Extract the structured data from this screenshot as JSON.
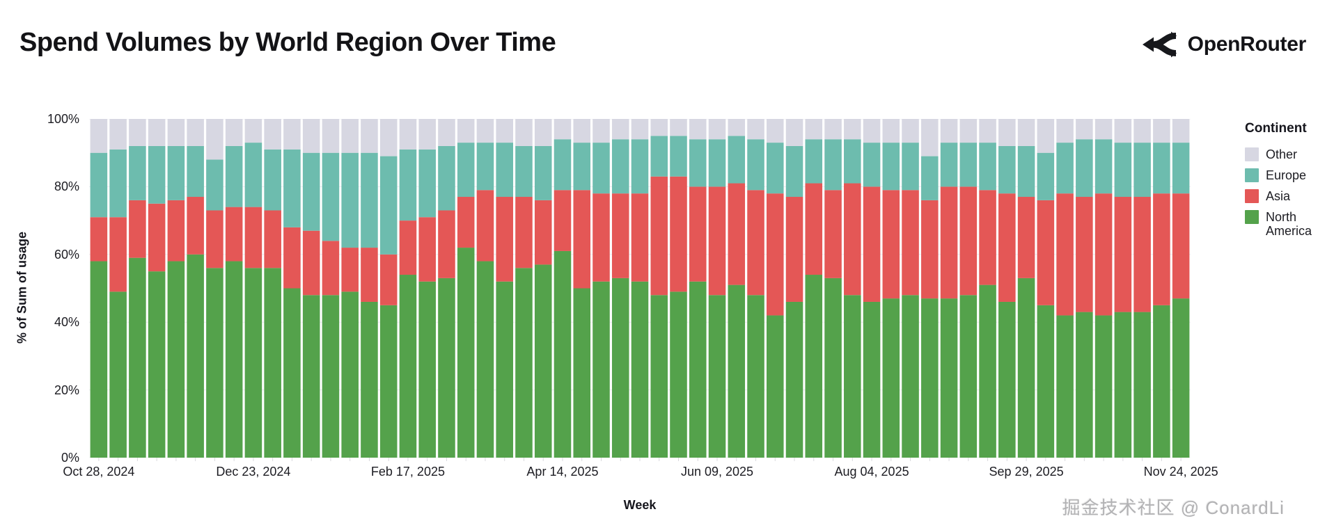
{
  "header": {
    "title": "Spend Volumes by World Region Over Time",
    "brand": "OpenRouter"
  },
  "watermark": "掘金技术社区 @ ConardLi",
  "chart_data": {
    "type": "bar",
    "variant": "stacked-100-percent",
    "title": "Spend Volumes by World Region Over Time",
    "xlabel": "Week",
    "ylabel": "% of Sum of usage",
    "ylim": [
      0,
      100
    ],
    "grid": true,
    "bar_count": 57,
    "x_unit": "week",
    "y_tick_labels": [
      "0%",
      "20%",
      "40%",
      "60%",
      "80%",
      "100%"
    ],
    "x_tick_labels": [
      "Oct 28, 2024",
      "Dec 23, 2024",
      "Feb 17, 2025",
      "Apr 14, 2025",
      "Jun 09, 2025",
      "Aug 04, 2025",
      "Sep 29, 2025",
      "Nov 24, 2025"
    ],
    "x_tick_every_n_bars": 8,
    "legend": {
      "title": "Continent",
      "position": "right",
      "entries": [
        {
          "label": "Other",
          "color": "#d7d7e2"
        },
        {
          "label": "Europe",
          "color": "#6dbcae"
        },
        {
          "label": "Asia",
          "color": "#e45756"
        },
        {
          "label": "North America",
          "color": "#54a24b"
        }
      ]
    },
    "series": [
      {
        "name": "North America",
        "color": "#54a24b",
        "values": [
          58,
          49,
          59,
          55,
          58,
          60,
          56,
          58,
          56,
          56,
          50,
          48,
          48,
          49,
          46,
          45,
          54,
          52,
          53,
          62,
          58,
          52,
          56,
          57,
          61,
          50,
          52,
          53,
          52,
          48,
          49,
          52,
          48,
          51,
          48,
          42,
          46,
          54,
          53,
          48,
          46,
          47,
          48,
          47,
          47,
          48,
          51,
          46,
          53,
          45,
          42,
          43,
          42,
          43,
          43,
          45,
          47
        ]
      },
      {
        "name": "Asia",
        "color": "#e45756",
        "values": [
          13,
          22,
          17,
          20,
          18,
          17,
          17,
          16,
          18,
          17,
          18,
          19,
          16,
          13,
          16,
          15,
          16,
          19,
          20,
          15,
          21,
          25,
          21,
          19,
          18,
          29,
          26,
          25,
          26,
          35,
          34,
          28,
          32,
          30,
          31,
          36,
          31,
          27,
          26,
          33,
          34,
          32,
          31,
          29,
          33,
          32,
          28,
          32,
          24,
          31,
          36,
          34,
          36,
          34,
          34,
          33,
          31
        ]
      },
      {
        "name": "Europe",
        "color": "#6dbcae",
        "values": [
          19,
          20,
          16,
          17,
          16,
          15,
          15,
          18,
          19,
          18,
          23,
          23,
          26,
          28,
          28,
          29,
          21,
          20,
          19,
          16,
          14,
          16,
          15,
          16,
          15,
          14,
          15,
          16,
          16,
          12,
          12,
          14,
          14,
          14,
          15,
          15,
          15,
          13,
          15,
          13,
          13,
          14,
          14,
          13,
          13,
          13,
          14,
          14,
          15,
          14,
          15,
          17,
          16,
          16,
          16,
          15,
          15
        ]
      },
      {
        "name": "Other",
        "color": "#d7d7e2",
        "values": [
          10,
          9,
          8,
          8,
          8,
          8,
          12,
          8,
          7,
          9,
          9,
          10,
          10,
          10,
          10,
          11,
          9,
          9,
          8,
          7,
          7,
          7,
          8,
          8,
          6,
          7,
          7,
          6,
          6,
          5,
          5,
          6,
          6,
          5,
          6,
          7,
          8,
          6,
          6,
          6,
          7,
          7,
          7,
          11,
          7,
          7,
          7,
          8,
          8,
          10,
          7,
          6,
          6,
          7,
          7,
          7,
          7
        ]
      }
    ]
  }
}
